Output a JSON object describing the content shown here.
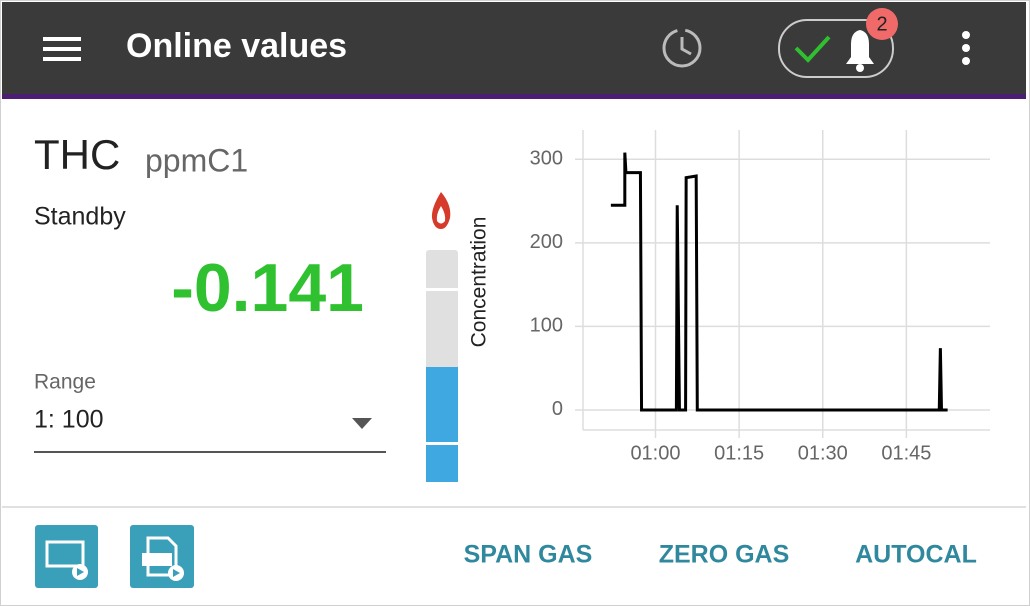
{
  "header": {
    "title": "Online values",
    "notification_count": 2
  },
  "measurement": {
    "name": "THC",
    "unit": "ppmC1",
    "status": "Standby",
    "value": -0.141,
    "range_label": "Range",
    "range_value": "1: 100",
    "gauge_label": "Concentration"
  },
  "chart": {
    "type": "line",
    "xlim": [
      47,
      120
    ],
    "ylim": [
      -24,
      335
    ],
    "xticks": [
      {
        "value": 60,
        "label": "01:00"
      },
      {
        "value": 75,
        "label": "01:15"
      },
      {
        "value": 90,
        "label": "01:30"
      },
      {
        "value": 105,
        "label": "01:45"
      }
    ],
    "yticks": [
      0,
      100,
      200,
      300
    ],
    "grid": true,
    "series": [
      {
        "color": "#000000",
        "x": [
          52.0,
          54.5,
          54.5,
          54.7,
          57.3,
          57.5,
          63.75,
          63.9,
          64.3,
          65.4,
          65.5,
          67.3,
          67.5,
          110.9,
          111.1,
          111.3,
          112.4
        ],
        "values": [
          245,
          245,
          308,
          284,
          284,
          0,
          0,
          245,
          0,
          0,
          278,
          280,
          0,
          0,
          74,
          0,
          0
        ]
      }
    ]
  },
  "actions": [
    "SPAN GAS",
    "ZERO GAS",
    "AUTOCAL"
  ]
}
